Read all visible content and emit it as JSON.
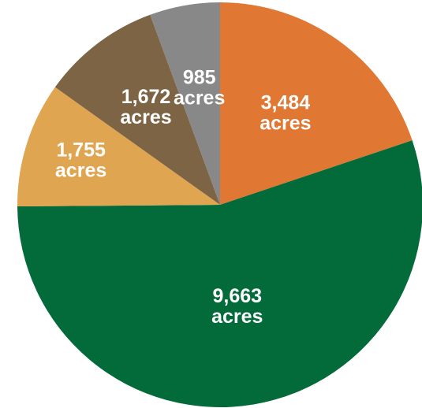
{
  "chart_data": {
    "type": "pie",
    "slices": [
      {
        "value": 3484,
        "label": "3,484",
        "unit": "acres",
        "color": "#E07733"
      },
      {
        "value": 9663,
        "label": "9,663",
        "unit": "acres",
        "color": "#036B3A"
      },
      {
        "value": 1755,
        "label": "1,755",
        "unit": "acres",
        "color": "#E0A550"
      },
      {
        "value": 1672,
        "label": "1,672",
        "unit": "acres",
        "color": "#7D6445"
      },
      {
        "value": 985,
        "label": "985",
        "unit": "acres",
        "color": "#888888"
      }
    ]
  }
}
